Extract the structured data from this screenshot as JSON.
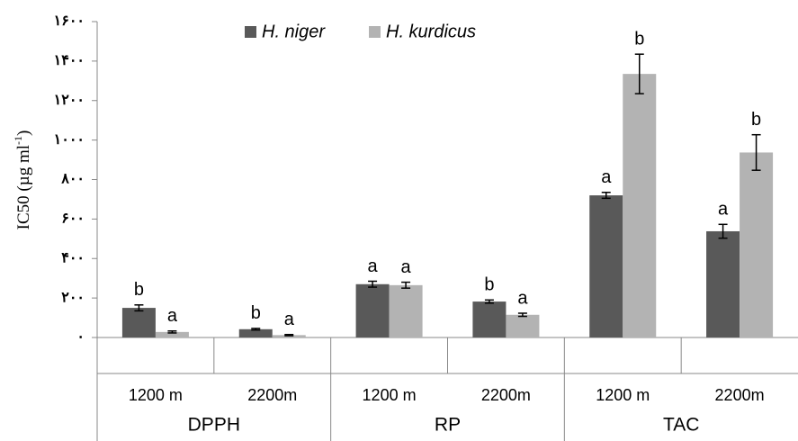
{
  "chart_data": {
    "type": "bar",
    "ylabel": {
      "main": "IC50 (µg ml",
      "sup": "-1",
      "end": ")"
    },
    "categories": [
      "1200 m",
      "2200m",
      "1200 m",
      "2200m",
      "1200 m",
      "2200m"
    ],
    "groups": [
      "DPPH",
      "RP",
      "TAC"
    ],
    "series": [
      {
        "name": "H. niger",
        "color": "#595959",
        "values": [
          150,
          42,
          270,
          182,
          720,
          538
        ],
        "errors": [
          15,
          4,
          15,
          8,
          15,
          35
        ],
        "letters": [
          "b",
          "b",
          "a",
          "b",
          "a",
          "a"
        ]
      },
      {
        "name": "H. kurdicus",
        "color": "#b3b3b3",
        "values": [
          28,
          12,
          265,
          115,
          1335,
          937
        ],
        "errors": [
          5,
          3,
          15,
          8,
          100,
          90
        ],
        "letters": [
          "a",
          "a",
          "a",
          "a",
          "b",
          "b"
        ]
      }
    ],
    "ylim": [
      0,
      1600
    ],
    "yticks": [
      {
        "value": 0,
        "label": "۰"
      },
      {
        "value": 200,
        "label": "۲۰۰"
      },
      {
        "value": 400,
        "label": "۴۰۰"
      },
      {
        "value": 600,
        "label": "۶۰۰"
      },
      {
        "value": 800,
        "label": "۸۰۰"
      },
      {
        "value": 1000,
        "label": "۱۰۰۰"
      },
      {
        "value": 1200,
        "label": "۱۲۰۰"
      },
      {
        "value": 1400,
        "label": "۱۴۰۰"
      },
      {
        "value": 1600,
        "label": "۱۶۰۰"
      }
    ],
    "grid": false,
    "legend": "top"
  }
}
